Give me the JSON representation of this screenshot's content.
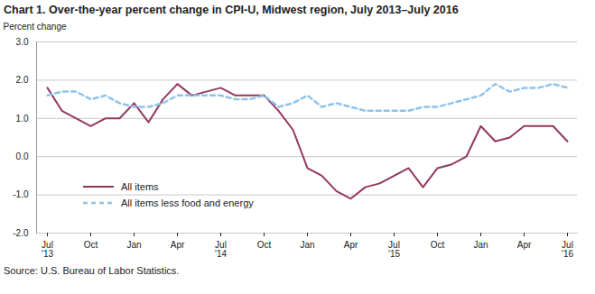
{
  "chart_data": {
    "type": "line",
    "title": "Chart 1. Over-the-year percent change in CPI-U, Midwest region, July 2013–July 2016",
    "y_label": "Percent change",
    "source": "Source: U.S. Bureau of Labor Statistics.",
    "categories": [
      "Jul\n'13",
      null,
      null,
      "Oct",
      null,
      null,
      "Jan",
      null,
      null,
      "Apr",
      null,
      null,
      "Jul\n'14",
      null,
      null,
      "Oct",
      null,
      null,
      "Jan",
      null,
      null,
      "Apr",
      null,
      null,
      "Jul\n'15",
      null,
      null,
      "Oct",
      null,
      null,
      "Jan",
      null,
      null,
      "Apr",
      null,
      null,
      "Jul\n'16"
    ],
    "series": [
      {
        "name": "All items",
        "color": "#93385f",
        "line_style": "solid",
        "values": [
          1.8,
          1.2,
          1.0,
          0.8,
          1.0,
          1.0,
          1.4,
          0.9,
          1.5,
          1.9,
          1.6,
          1.7,
          1.8,
          1.6,
          1.6,
          1.6,
          1.2,
          0.7,
          -0.3,
          -0.5,
          -0.9,
          -1.1,
          -0.8,
          -0.7,
          -0.5,
          -0.3,
          -0.8,
          -0.3,
          -0.2,
          0.0,
          0.8,
          0.4,
          0.5,
          0.8,
          0.8,
          0.8,
          0.4
        ]
      },
      {
        "name": "All items less food and energy",
        "color": "#8fc3ea",
        "line_style": "dashed",
        "values": [
          1.6,
          1.7,
          1.7,
          1.5,
          1.6,
          1.4,
          1.3,
          1.3,
          1.4,
          1.6,
          1.6,
          1.6,
          1.6,
          1.5,
          1.5,
          1.6,
          1.3,
          1.4,
          1.6,
          1.3,
          1.4,
          1.3,
          1.2,
          1.2,
          1.2,
          1.2,
          1.3,
          1.3,
          1.4,
          1.5,
          1.6,
          1.9,
          1.7,
          1.8,
          1.8,
          1.9,
          1.8
        ]
      }
    ],
    "ylim": [
      -2,
      3
    ],
    "yticks": [
      {
        "value": -2,
        "label": "-2.0"
      },
      {
        "value": -1,
        "label": "-1.0"
      },
      {
        "value": 0,
        "label": "0.0"
      },
      {
        "value": 1,
        "label": "1.0"
      },
      {
        "value": 2,
        "label": "2.0"
      },
      {
        "value": 3,
        "label": "3.0"
      }
    ],
    "grid": true,
    "legend": "lower left"
  }
}
